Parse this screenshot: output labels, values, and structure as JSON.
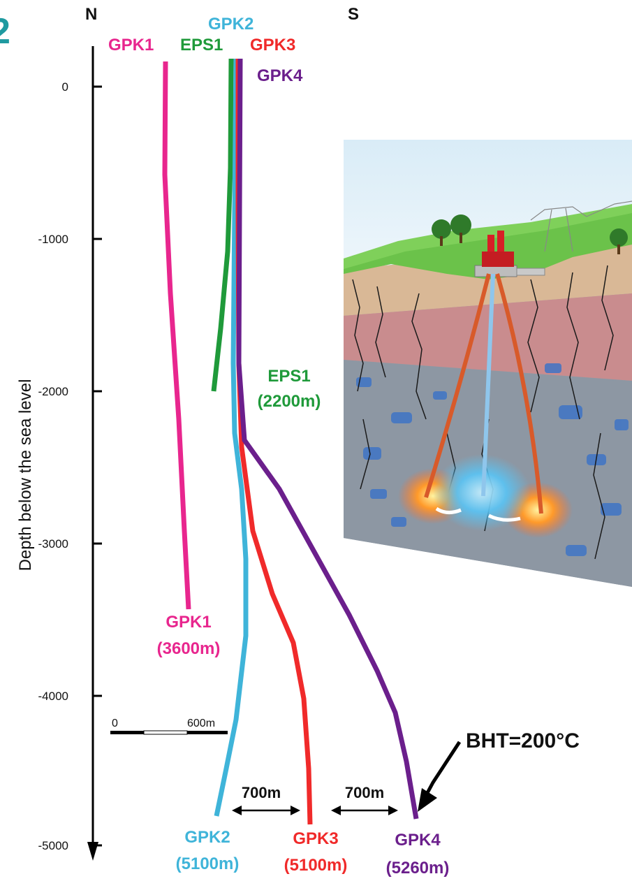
{
  "header": {
    "north": "N",
    "south": "S",
    "corner_mark": "2"
  },
  "axis": {
    "label": "Depth below the sea level",
    "ticks": [
      "0",
      "-1000",
      "-2000",
      "-3000",
      "-4000",
      "-5000"
    ]
  },
  "wells": {
    "gpk1": {
      "name": "GPK1",
      "depth": "(3600m)",
      "color": "#e8268e"
    },
    "eps1": {
      "name": "EPS1",
      "depth": "(2200m)",
      "color": "#1f9a3a"
    },
    "gpk2": {
      "name": "GPK2",
      "depth": "(5100m)",
      "color": "#3fb4d9"
    },
    "gpk3": {
      "name": "GPK3",
      "depth": "(5100m)",
      "color": "#f02a2a"
    },
    "gpk4": {
      "name": "GPK4",
      "depth": "(5260m)",
      "color": "#6b1f8c"
    }
  },
  "scale_bar": {
    "start": "0",
    "end": "600m"
  },
  "spacing": {
    "left": "700m",
    "right": "700m"
  },
  "annotation": {
    "bht": "BHT=200°C"
  },
  "illustration": {
    "description_icon": "geothermal-plant-illustration"
  }
}
